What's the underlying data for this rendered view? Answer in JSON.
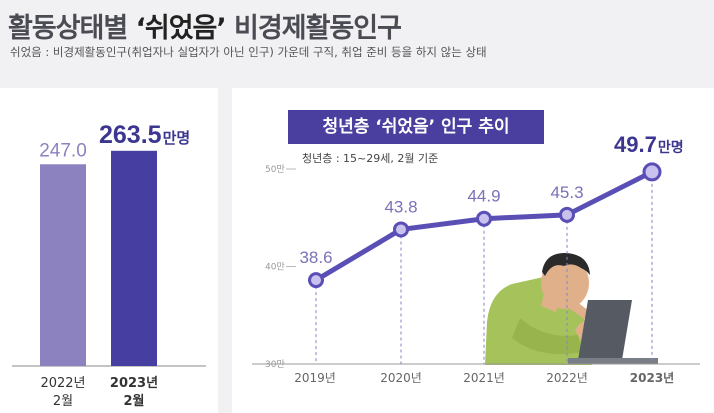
{
  "header": {
    "title_pre": "활동상태별 ",
    "title_highlight": "‘쉬었음’",
    "title_post": " 비경제활동인구",
    "subtitle": "쉬었음 : 비경제활동인구(취업자나 실업자가 아닌 인구) 가운데 구직, 취업 준비 등을 하지 않는 상태"
  },
  "colors": {
    "bar_2022": "#8b82bf",
    "bar_2023": "#463ea0",
    "line": "#5a4fb5",
    "marker_fill": "#c9c2ee"
  },
  "chart_data": [
    {
      "type": "bar",
      "categories": [
        "2022년\n2월",
        "2023년\n2월"
      ],
      "category_lines": [
        [
          "2022년",
          "2월"
        ],
        [
          "2023년",
          "2월"
        ]
      ],
      "values": [
        247.0,
        263.5
      ],
      "value_labels": [
        "247.0",
        "263.5"
      ],
      "unit": "만명",
      "ylim": [
        0,
        280
      ]
    },
    {
      "type": "line",
      "title": "청년층 ‘쉬었음’ 인구 추이",
      "subtitle": "청년층 : 15~29세, 2월 기준",
      "x": [
        "2019년",
        "2020년",
        "2021년",
        "2022년",
        "2023년"
      ],
      "values": [
        38.6,
        43.8,
        44.9,
        45.3,
        49.7
      ],
      "value_labels": [
        "38.6",
        "43.8",
        "44.9",
        "45.3",
        "49.7"
      ],
      "unit": "만명",
      "ylim": [
        30,
        50
      ],
      "yticks": [
        30,
        40,
        50
      ],
      "ytick_labels": [
        "30만",
        "40만",
        "50만"
      ],
      "grid": false
    }
  ]
}
